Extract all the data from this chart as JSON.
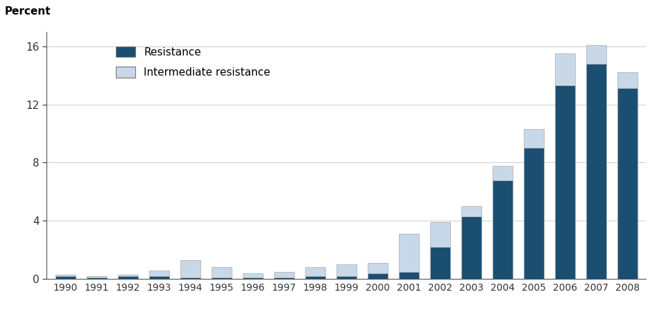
{
  "years": [
    1990,
    1991,
    1992,
    1993,
    1994,
    1995,
    1996,
    1997,
    1998,
    1999,
    2000,
    2001,
    2002,
    2003,
    2004,
    2005,
    2006,
    2007,
    2008
  ],
  "resistance": [
    0.2,
    0.1,
    0.2,
    0.2,
    0.1,
    0.1,
    0.1,
    0.1,
    0.2,
    0.2,
    0.4,
    0.5,
    2.2,
    4.3,
    6.8,
    9.0,
    13.3,
    14.8,
    13.1
  ],
  "intermediate": [
    0.1,
    0.1,
    0.1,
    0.4,
    1.2,
    0.7,
    0.3,
    0.4,
    0.6,
    0.8,
    0.7,
    2.6,
    1.7,
    0.7,
    1.0,
    1.3,
    2.2,
    1.3,
    1.1
  ],
  "resistance_color": "#1b4f72",
  "intermediate_color": "#c8d8e8",
  "ylabel": "Percent",
  "ylim": [
    0,
    17
  ],
  "yticks": [
    0,
    4,
    8,
    12,
    16
  ],
  "bar_width": 0.65,
  "background_color": "#ffffff",
  "legend_resistance": "Resistance",
  "legend_intermediate": "Intermediate resistance",
  "edge_color": "#aaaaaa"
}
